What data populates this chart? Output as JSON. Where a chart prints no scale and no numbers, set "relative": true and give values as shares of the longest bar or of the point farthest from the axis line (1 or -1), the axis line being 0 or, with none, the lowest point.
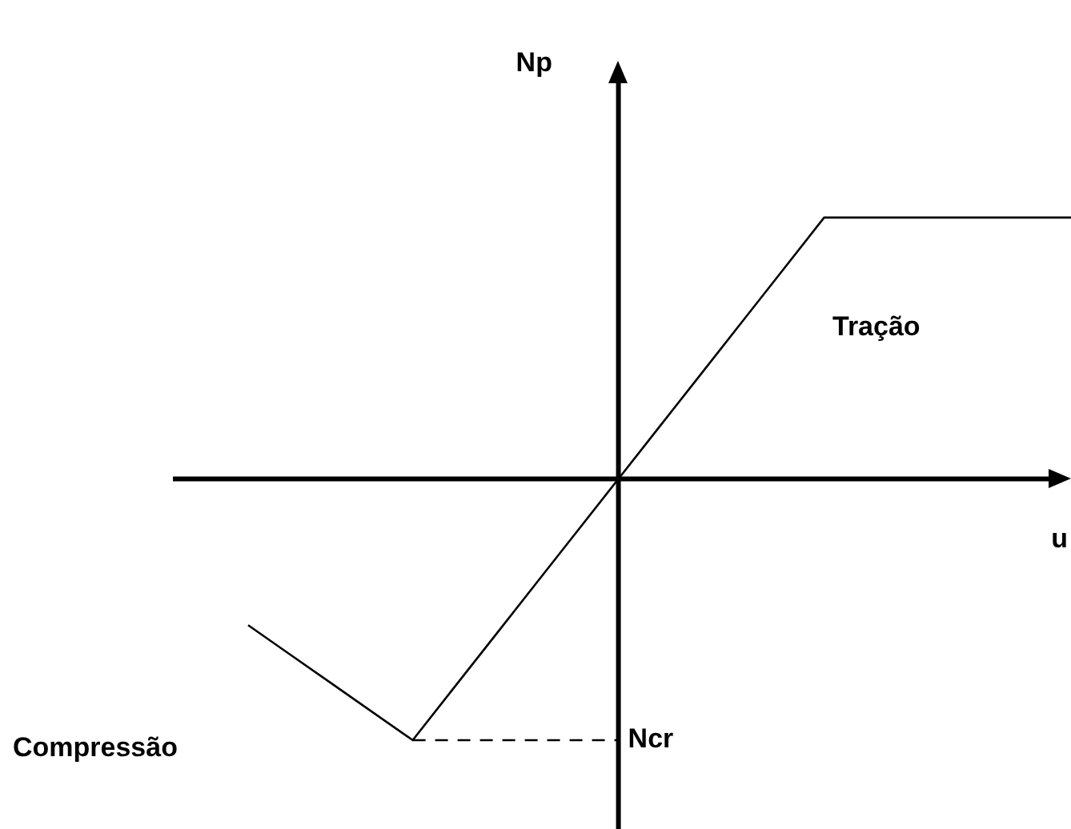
{
  "chart_data": {
    "type": "line",
    "relative": true,
    "xlabel": "u",
    "categories": [
      null,
      null,
      null,
      null,
      null,
      null,
      null,
      null,
      null,
      null,
      null,
      null,
      null,
      null,
      null,
      null,
      null,
      null,
      null,
      null,
      null
    ],
    "series": [
      {
        "color": "#000000",
        "values": [
          -0.56,
          -0.67,
          -0.78,
          -0.89,
          -1,
          -0.8,
          -0.6,
          -0.4,
          -0.2,
          0,
          0.2,
          0.4,
          0.6,
          0.8,
          1,
          1,
          1,
          1,
          1,
          1,
          1
        ]
      }
    ],
    "ref_lines": [
      {
        "axis": "y",
        "value": -1,
        "label": "Ncr",
        "line_style": "dashed",
        "color": "#000000"
      }
    ],
    "annotations": [
      "Np",
      "Tração",
      "Compressão"
    ],
    "legend": false
  }
}
